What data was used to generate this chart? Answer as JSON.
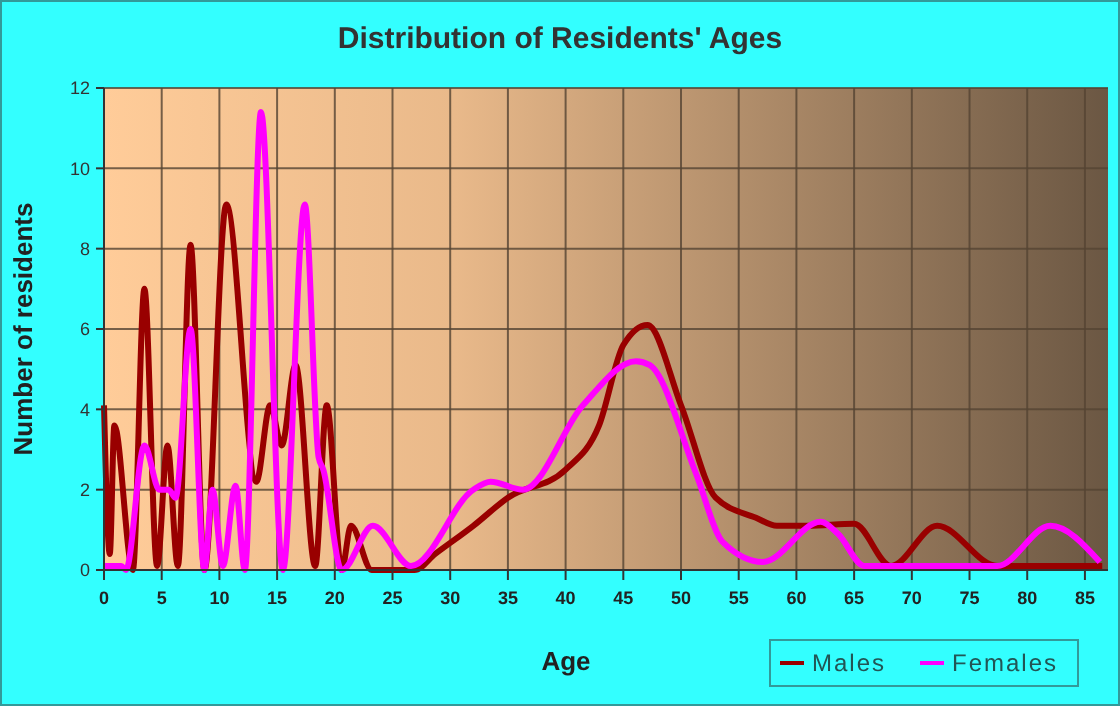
{
  "chart_data": {
    "type": "line",
    "title": "Distribution of Residents' Ages",
    "xlabel": "Age",
    "ylabel": "Number of residents",
    "xlim": [
      0,
      87
    ],
    "xticks": [
      0,
      5,
      10,
      15,
      20,
      25,
      30,
      35,
      40,
      45,
      50,
      55,
      60,
      65,
      70,
      75,
      80,
      85
    ],
    "ylim": [
      0,
      12
    ],
    "yticks": [
      0,
      2,
      4,
      6,
      8,
      10,
      12
    ],
    "grid": true,
    "legend": "bottom right",
    "line_style": "solid",
    "marker": "none",
    "series": [
      {
        "name": "Males",
        "color": "#990000",
        "x": [
          0,
          0.5,
          0.9,
          2.5,
          3.5,
          4.6,
          5.5,
          6.4,
          7.5,
          8.7,
          10.6,
          13.2,
          14.4,
          15.4,
          16.6,
          18.3,
          19.3,
          20.6,
          21.4,
          23.2,
          26.9,
          28.7,
          32,
          35,
          40,
          42.9,
          45,
          47.1,
          50,
          53,
          56.5,
          58.3,
          61,
          65,
          68.2,
          72.2,
          77.4,
          86.5
        ],
        "values": [
          4.1,
          0.4,
          3.6,
          0,
          7,
          0.1,
          3.1,
          0.1,
          8.1,
          0,
          9.1,
          2.2,
          4.1,
          3.1,
          5.1,
          0.1,
          4.1,
          0,
          1.1,
          0,
          0,
          0.4,
          1.1,
          1.8,
          2.5,
          3.6,
          5.6,
          6.1,
          4.1,
          1.8,
          1.3,
          1.1,
          1.1,
          1.15,
          0.1,
          1.1,
          0.1,
          0.1
        ]
      },
      {
        "name": "Females",
        "color": "#ff00ff",
        "x": [
          0,
          1.5,
          1.9,
          3.5,
          4.8,
          5.6,
          6.2,
          7.5,
          8.7,
          9.4,
          10.3,
          11.4,
          12.2,
          13.6,
          15.5,
          17.4,
          18.6,
          19,
          20.6,
          23.3,
          26.6,
          32,
          33.5,
          36.3,
          41.5,
          46.1,
          47.3,
          51.3,
          53.6,
          57.1,
          62.1,
          63.6,
          65.9,
          77.4,
          82,
          86.3
        ],
        "values": [
          0.1,
          0.1,
          0,
          3.1,
          2,
          2,
          1.8,
          6,
          0,
          2,
          0.1,
          2.1,
          0,
          11.4,
          0,
          9.1,
          2.8,
          2.5,
          0,
          1.1,
          0.1,
          2,
          2.2,
          2,
          4.1,
          5.2,
          5.1,
          2.4,
          0.7,
          0.2,
          1.2,
          0.9,
          0.1,
          0.1,
          1.1,
          0.2
        ]
      }
    ]
  }
}
